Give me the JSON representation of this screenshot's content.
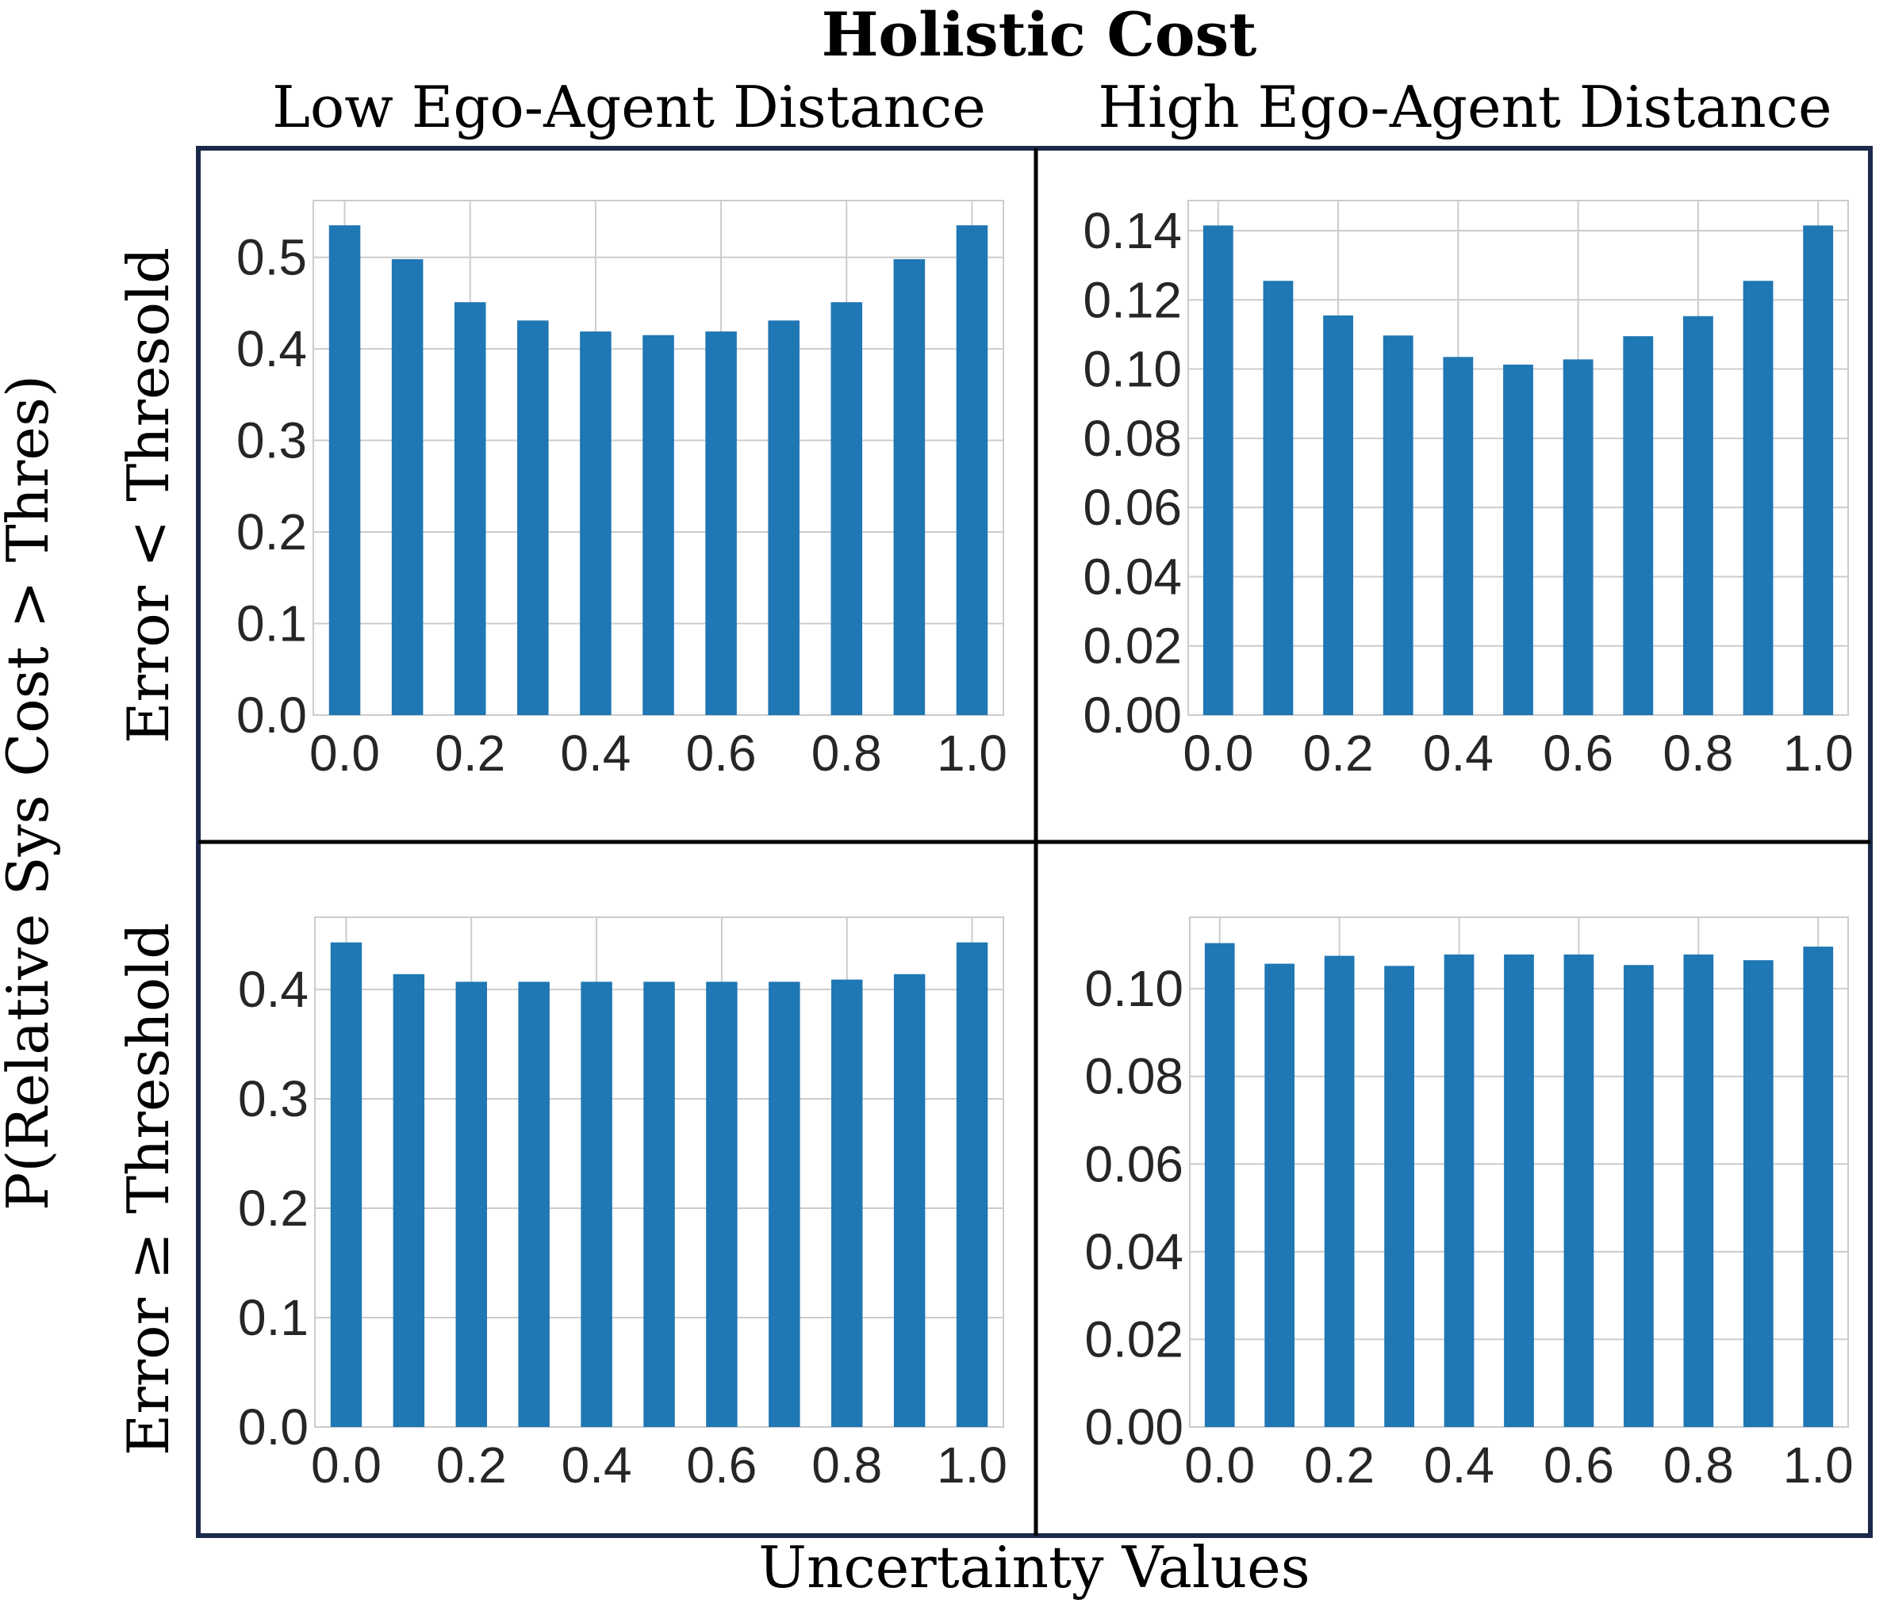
{
  "title": "Holistic Cost",
  "column_titles": [
    "Low Ego-Agent Distance",
    "High Ego-Agent Distance"
  ],
  "row_labels": [
    "Error < Thresold",
    "Error ≥ Threshold"
  ],
  "ylabel": "P(Relative Sys Cost > Thres)",
  "xlabel": "Uncertainty Values",
  "colors": {
    "bar": "#1f77b4",
    "grid": "#cccccc",
    "frame": "#1b2a4a",
    "text": "#262626"
  },
  "chart_data": [
    {
      "type": "bar",
      "panel": "top-left",
      "x": [
        0.0,
        0.1,
        0.2,
        0.3,
        0.4,
        0.5,
        0.6,
        0.7,
        0.8,
        0.9,
        1.0
      ],
      "values": [
        0.535,
        0.498,
        0.451,
        0.431,
        0.419,
        0.415,
        0.419,
        0.431,
        0.451,
        0.498,
        0.535
      ],
      "xlim": [
        -0.05,
        1.05
      ],
      "ylim": [
        0,
        0.562
      ],
      "xticks": [
        0.0,
        0.2,
        0.4,
        0.6,
        0.8,
        1.0
      ],
      "xtick_labels": [
        "0.0",
        "0.2",
        "0.4",
        "0.6",
        "0.8",
        "1.0"
      ],
      "yticks": [
        0.0,
        0.1,
        0.2,
        0.3,
        0.4,
        0.5
      ],
      "ytick_labels": [
        "0.0",
        "0.1",
        "0.2",
        "0.3",
        "0.4",
        "0.5"
      ],
      "grid": true
    },
    {
      "type": "bar",
      "panel": "top-right",
      "x": [
        0.0,
        0.1,
        0.2,
        0.3,
        0.4,
        0.5,
        0.6,
        0.7,
        0.8,
        0.9,
        1.0
      ],
      "values": [
        0.1415,
        0.1255,
        0.1155,
        0.1097,
        0.1035,
        0.1013,
        0.1028,
        0.1095,
        0.1153,
        0.1255,
        0.1415
      ],
      "xlim": [
        -0.05,
        1.05
      ],
      "ylim": [
        0,
        0.1487
      ],
      "xticks": [
        0.0,
        0.2,
        0.4,
        0.6,
        0.8,
        1.0
      ],
      "xtick_labels": [
        "0.0",
        "0.2",
        "0.4",
        "0.6",
        "0.8",
        "1.0"
      ],
      "yticks": [
        0.0,
        0.02,
        0.04,
        0.06,
        0.08,
        0.1,
        0.12,
        0.14
      ],
      "ytick_labels": [
        "0.00",
        "0.02",
        "0.04",
        "0.06",
        "0.08",
        "0.10",
        "0.12",
        "0.14"
      ],
      "grid": true
    },
    {
      "type": "bar",
      "panel": "bottom-left",
      "x": [
        0.0,
        0.1,
        0.2,
        0.3,
        0.4,
        0.5,
        0.6,
        0.7,
        0.8,
        0.9,
        1.0
      ],
      "values": [
        0.443,
        0.414,
        0.407,
        0.407,
        0.407,
        0.407,
        0.407,
        0.407,
        0.409,
        0.414,
        0.443
      ],
      "xlim": [
        -0.05,
        1.05
      ],
      "ylim": [
        0,
        0.466
      ],
      "xticks": [
        0.0,
        0.2,
        0.4,
        0.6,
        0.8,
        1.0
      ],
      "xtick_labels": [
        "0.0",
        "0.2",
        "0.4",
        "0.6",
        "0.8",
        "1.0"
      ],
      "yticks": [
        0.0,
        0.1,
        0.2,
        0.3,
        0.4
      ],
      "ytick_labels": [
        "0.0",
        "0.1",
        "0.2",
        "0.3",
        "0.4"
      ],
      "grid": true
    },
    {
      "type": "bar",
      "panel": "bottom-right",
      "x": [
        0.0,
        0.1,
        0.2,
        0.3,
        0.4,
        0.5,
        0.6,
        0.7,
        0.8,
        0.9,
        1.0
      ],
      "values": [
        0.1104,
        0.1057,
        0.1075,
        0.1052,
        0.1078,
        0.1078,
        0.1078,
        0.1054,
        0.1078,
        0.1065,
        0.1096
      ],
      "xlim": [
        -0.05,
        1.05
      ],
      "ylim": [
        0,
        0.1163
      ],
      "xticks": [
        0.0,
        0.2,
        0.4,
        0.6,
        0.8,
        1.0
      ],
      "xtick_labels": [
        "0.0",
        "0.2",
        "0.4",
        "0.6",
        "0.8",
        "1.0"
      ],
      "yticks": [
        0.0,
        0.02,
        0.04,
        0.06,
        0.08,
        0.1
      ],
      "ytick_labels": [
        "0.00",
        "0.02",
        "0.04",
        "0.06",
        "0.08",
        "0.10"
      ],
      "grid": true
    }
  ]
}
